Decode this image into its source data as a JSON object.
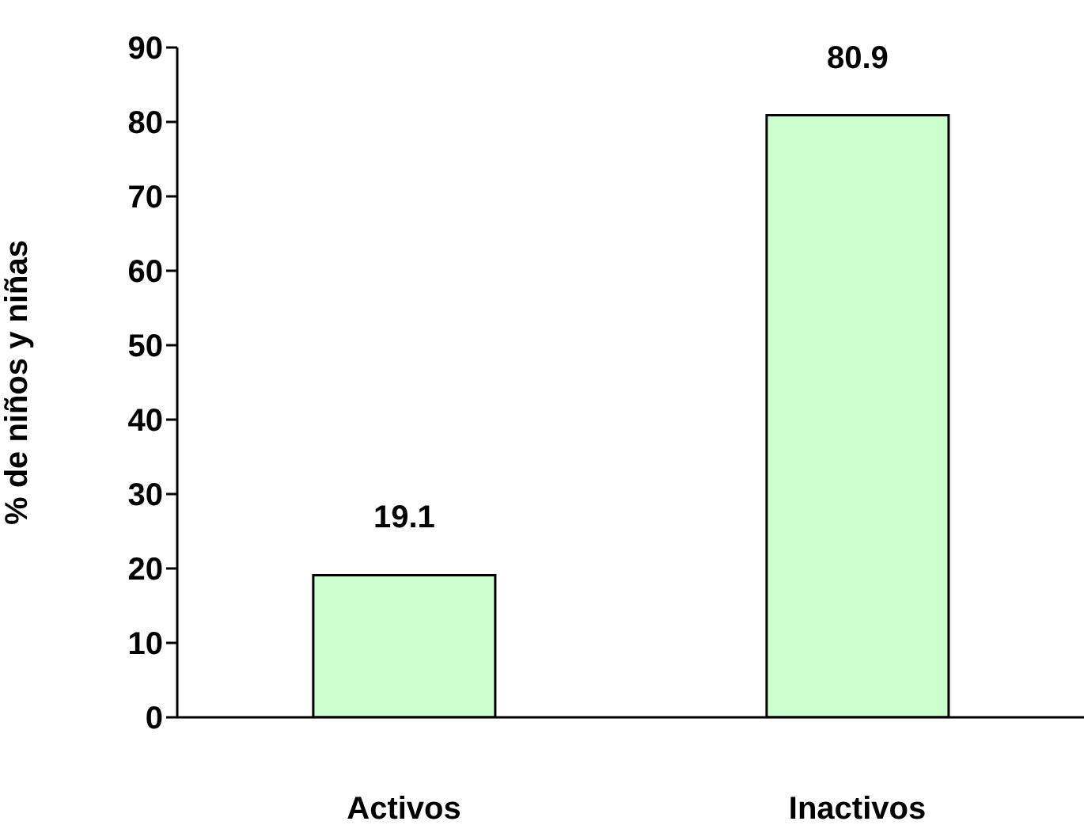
{
  "chart_data": {
    "type": "bar",
    "ylabel": "% de niños y niñas",
    "categories": [
      "Activos",
      "Inactivos"
    ],
    "values": [
      19.1,
      80.9
    ],
    "color": "#ccffcc",
    "ylim": [
      0,
      90
    ],
    "yticks": [
      0,
      10,
      20,
      30,
      40,
      50,
      60,
      70,
      80,
      90
    ],
    "data_labels": true,
    "grid": false,
    "legend": false
  }
}
